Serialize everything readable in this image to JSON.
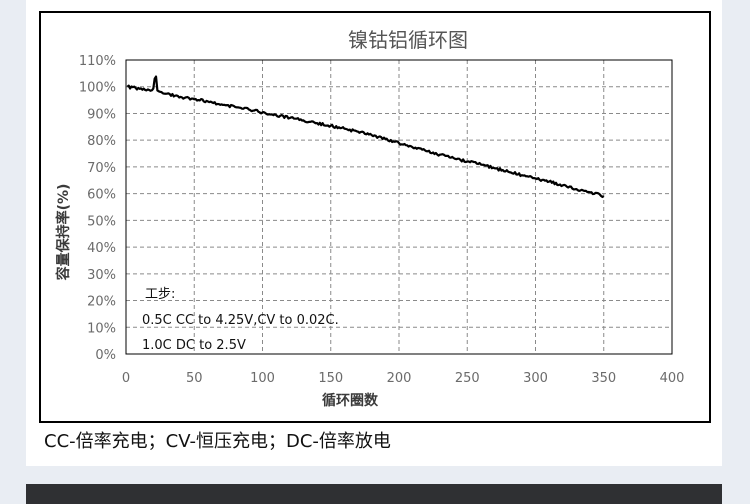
{
  "chart_data": {
    "type": "line",
    "title": "镍钴铝循环图",
    "xlabel": "循环圈数",
    "ylabel": "容量保持率(%)",
    "xlim": [
      0,
      400
    ],
    "ylim": [
      0,
      110
    ],
    "x_ticks": [
      0,
      50,
      100,
      150,
      200,
      250,
      300,
      350,
      400
    ],
    "y_ticks": [
      "0%",
      "10%",
      "20%",
      "30%",
      "40%",
      "50%",
      "60%",
      "70%",
      "80%",
      "90%",
      "100%",
      "110%"
    ],
    "grid": "dashed",
    "series": [
      {
        "color": "#000000",
        "x": [
          1,
          10,
          18,
          20,
          21,
          22,
          23,
          25,
          30,
          40,
          50,
          60,
          70,
          80,
          90,
          100,
          110,
          120,
          130,
          140,
          150,
          160,
          170,
          180,
          190,
          200,
          210,
          220,
          230,
          240,
          250,
          260,
          270,
          280,
          290,
          300,
          310,
          320,
          330,
          340,
          350
        ],
        "y": [
          100,
          99.2,
          98.5,
          99.3,
          103,
          103.8,
          98.6,
          98.1,
          97.4,
          96.2,
          95.3,
          94.5,
          93.4,
          92.4,
          91.5,
          90.4,
          89.4,
          88.3,
          87.4,
          86.4,
          85.4,
          84.3,
          83.2,
          81.9,
          80.4,
          78.9,
          77.3,
          75.9,
          74.6,
          73.3,
          72.0,
          70.9,
          69.5,
          68.2,
          66.9,
          65.7,
          64.5,
          63.1,
          61.7,
          60.5,
          59.1
        ]
      }
    ],
    "annotation": {
      "title": "工步:",
      "lines": [
        "0.5C CC to 4.25V,CV to 0.02C.",
        "1.0C DC to 2.5V"
      ]
    }
  },
  "caption": "CC-倍率充电；CV-恒压充电；DC-倍率放电"
}
